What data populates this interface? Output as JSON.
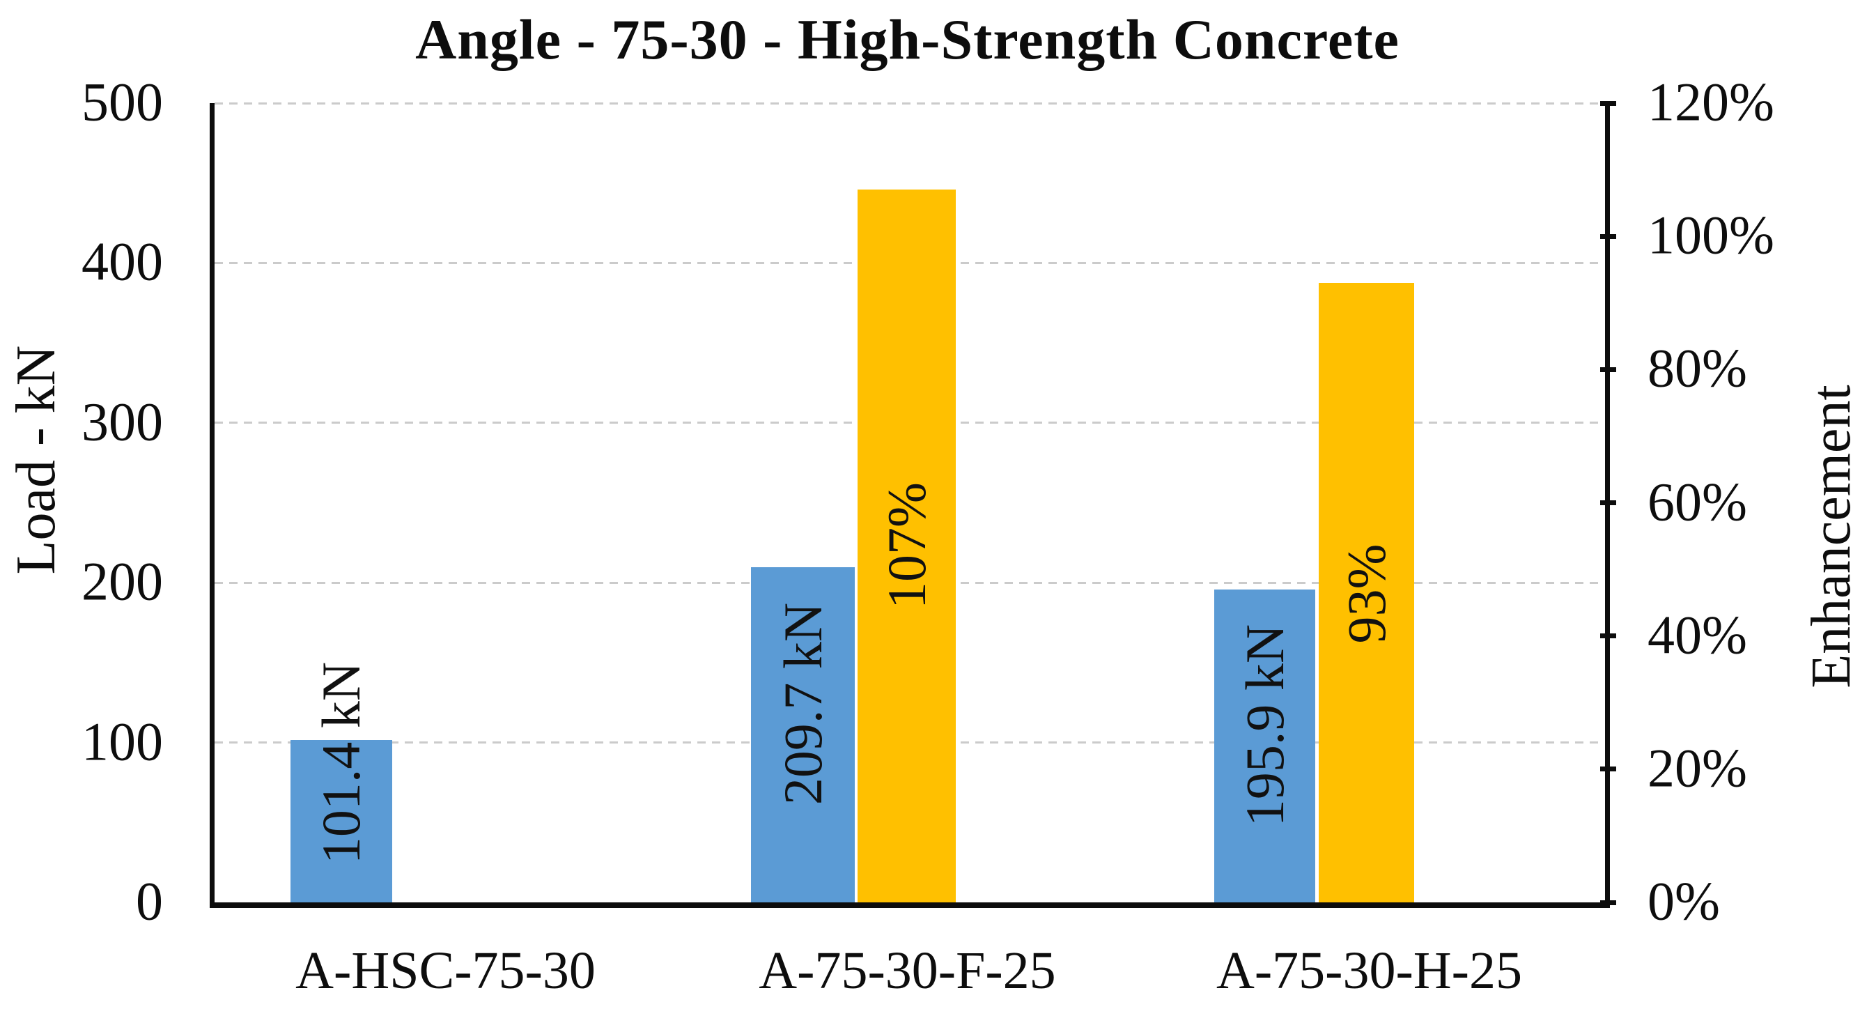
{
  "title": "Angle - 75-30 - High-Strength Concrete",
  "colors": {
    "bar_blue": "#5B9BD5",
    "bar_orange": "#FFC000",
    "gridline": "#cbcbcb",
    "axis": "#0d0d0d",
    "background": "#ffffff"
  },
  "chart_data": {
    "type": "bar",
    "title": "Angle - 75-30 - High-Strength Concrete",
    "categories": [
      "A-HSC-75-30",
      "A-75-30-F-25",
      "A-75-30-H-25"
    ],
    "series": [
      {
        "name": "Load",
        "axis": "left",
        "unit": "kN",
        "color": "#5B9BD5",
        "values": [
          101.4,
          209.7,
          195.9
        ],
        "labels": [
          "101.4 kN",
          "209.7 kN",
          "195.9 kN"
        ]
      },
      {
        "name": "Enhancement",
        "axis": "right",
        "unit": "%",
        "color": "#FFC000",
        "values": [
          null,
          107,
          93
        ],
        "labels": [
          "",
          "107%",
          "93%"
        ]
      }
    ],
    "left_axis": {
      "title": "Load - kN",
      "min": 0,
      "max": 500,
      "tick_values": [
        0,
        100,
        200,
        300,
        400,
        500
      ],
      "tick_labels": [
        "0",
        "100",
        "200",
        "300",
        "400",
        "500"
      ]
    },
    "right_axis": {
      "title": "Enhancement",
      "min": 0,
      "max": 120,
      "tick_values": [
        0,
        20,
        40,
        60,
        80,
        100,
        120
      ],
      "tick_labels": [
        "0%",
        "20%",
        "40%",
        "60%",
        "80%",
        "100%",
        "120%"
      ]
    },
    "grid": true,
    "legend": "none",
    "data_label_rotation": -90
  }
}
